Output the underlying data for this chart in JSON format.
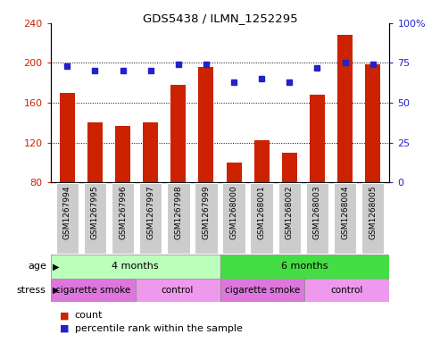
{
  "title": "GDS5438 / ILMN_1252295",
  "samples": [
    "GSM1267994",
    "GSM1267995",
    "GSM1267996",
    "GSM1267997",
    "GSM1267998",
    "GSM1267999",
    "GSM1268000",
    "GSM1268001",
    "GSM1268002",
    "GSM1268003",
    "GSM1268004",
    "GSM1268005"
  ],
  "counts": [
    170,
    140,
    137,
    140,
    178,
    196,
    100,
    122,
    110,
    168,
    228,
    198
  ],
  "percentile": [
    73,
    70,
    70,
    70,
    74,
    74,
    63,
    65,
    63,
    72,
    75,
    74
  ],
  "ylim_left": [
    80,
    240
  ],
  "ylim_right": [
    0,
    100
  ],
  "yticks_left": [
    80,
    120,
    160,
    200,
    240
  ],
  "yticks_right": [
    0,
    25,
    50,
    75,
    100
  ],
  "ytick_labels_right": [
    "0",
    "25",
    "50",
    "75",
    "100%"
  ],
  "bar_color": "#cc2200",
  "dot_color": "#2222cc",
  "age_groups": [
    {
      "label": "4 months",
      "start": 0,
      "end": 6,
      "color": "#bbffbb"
    },
    {
      "label": "6 months",
      "start": 6,
      "end": 12,
      "color": "#44dd44"
    }
  ],
  "stress_colors": [
    "#dd77dd",
    "#ee99ee",
    "#dd77dd",
    "#ee99ee"
  ],
  "stress_labels": [
    "cigarette smoke",
    "control",
    "cigarette smoke",
    "control"
  ],
  "stress_ranges": [
    [
      0,
      3
    ],
    [
      3,
      6
    ],
    [
      6,
      9
    ],
    [
      9,
      12
    ]
  ],
  "legend_items": [
    {
      "label": "count",
      "color": "#cc2200"
    },
    {
      "label": "percentile rank within the sample",
      "color": "#2222cc"
    }
  ],
  "box_bg": "#cccccc"
}
